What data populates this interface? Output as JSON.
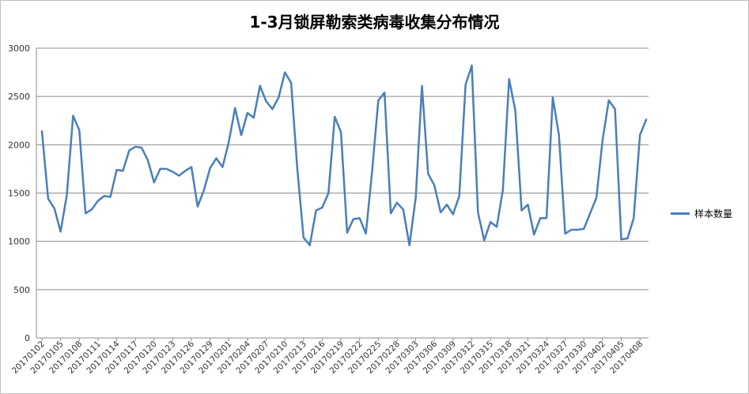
{
  "chart_data": {
    "type": "line",
    "title": "1-3月锁屏勒索类病毒收集分布情况",
    "ylim": [
      0,
      3000
    ],
    "yticks": [
      0,
      500,
      1000,
      1500,
      2000,
      2500,
      3000
    ],
    "grid": true,
    "legend_position": "right",
    "line_color": "#4a7ebb",
    "x_tick_labels": [
      "20170102",
      "20170105",
      "20170108",
      "20170111",
      "20170114",
      "20170117",
      "20170120",
      "20170123",
      "20170126",
      "20170129",
      "20170201",
      "20170204",
      "20170207",
      "20170210",
      "20170213",
      "20170216",
      "20170219",
      "20170222",
      "20170225",
      "20170228",
      "20170303",
      "20170306",
      "20170309",
      "20170312",
      "20170315",
      "20170318",
      "20170321",
      "20170324",
      "20170327",
      "20170330",
      "20170402",
      "20170405",
      "20170408"
    ],
    "x": [
      "20170102",
      "20170103",
      "20170104",
      "20170105",
      "20170106",
      "20170107",
      "20170108",
      "20170109",
      "20170110",
      "20170111",
      "20170112",
      "20170113",
      "20170114",
      "20170115",
      "20170116",
      "20170117",
      "20170118",
      "20170119",
      "20170120",
      "20170121",
      "20170122",
      "20170123",
      "20170124",
      "20170125",
      "20170126",
      "20170127",
      "20170128",
      "20170129",
      "20170130",
      "20170131",
      "20170201",
      "20170202",
      "20170203",
      "20170204",
      "20170205",
      "20170206",
      "20170207",
      "20170208",
      "20170209",
      "20170210",
      "20170211",
      "20170212",
      "20170213",
      "20170214",
      "20170215",
      "20170216",
      "20170217",
      "20170218",
      "20170219",
      "20170220",
      "20170221",
      "20170222",
      "20170223",
      "20170224",
      "20170225",
      "20170226",
      "20170227",
      "20170228",
      "20170301",
      "20170302",
      "20170303",
      "20170304",
      "20170305",
      "20170306",
      "20170307",
      "20170308",
      "20170309",
      "20170310",
      "20170311",
      "20170312",
      "20170313",
      "20170314",
      "20170315",
      "20170316",
      "20170317",
      "20170318",
      "20170319",
      "20170320",
      "20170321",
      "20170322",
      "20170323",
      "20170324",
      "20170325",
      "20170326",
      "20170327",
      "20170328",
      "20170329",
      "20170330",
      "20170331",
      "20170401",
      "20170402",
      "20170403",
      "20170404",
      "20170405",
      "20170406",
      "20170407",
      "20170408",
      "20170409"
    ],
    "series": [
      {
        "name": "样本数量",
        "values": [
          2140,
          1440,
          1340,
          1100,
          1480,
          2300,
          2150,
          1290,
          1330,
          1420,
          1470,
          1460,
          1740,
          1730,
          1940,
          1980,
          1970,
          1840,
          1610,
          1750,
          1750,
          1720,
          1680,
          1730,
          1770,
          1360,
          1530,
          1760,
          1860,
          1770,
          2030,
          2380,
          2100,
          2330,
          2280,
          2610,
          2450,
          2370,
          2490,
          2750,
          2640,
          1750,
          1040,
          960,
          1320,
          1350,
          1500,
          2290,
          2130,
          1090,
          1230,
          1240,
          1080,
          1720,
          2460,
          2540,
          1290,
          1400,
          1330,
          960,
          1450,
          2610,
          1700,
          1580,
          1300,
          1380,
          1280,
          1470,
          2620,
          2820,
          1300,
          1010,
          1200,
          1150,
          1530,
          2680,
          2350,
          1320,
          1380,
          1070,
          1240,
          1240,
          2490,
          2100,
          1080,
          1120,
          1120,
          1130,
          1290,
          1450,
          2050,
          2460,
          2370,
          1020,
          1030,
          1240,
          2100,
          2260
        ]
      }
    ]
  }
}
